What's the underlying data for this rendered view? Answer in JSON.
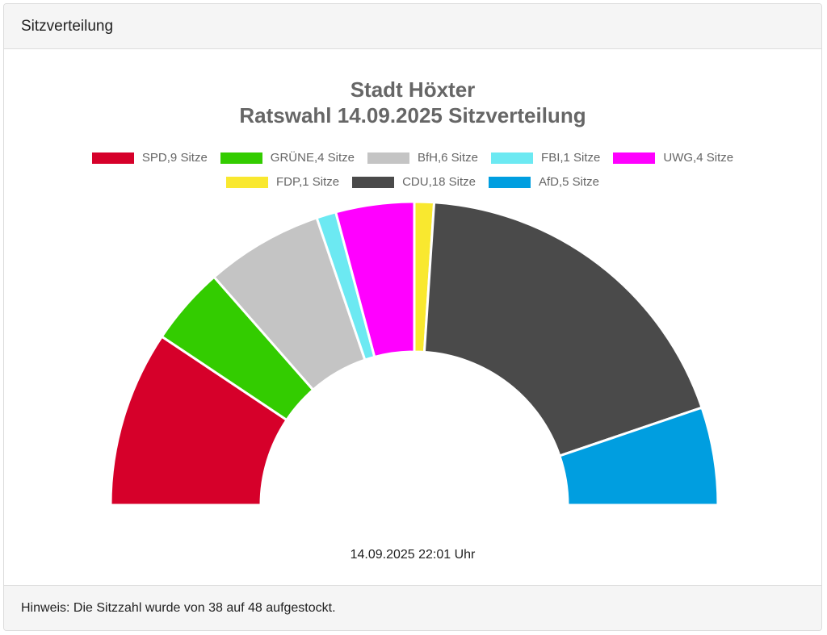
{
  "header": {
    "title": "Sitzverteilung"
  },
  "footer": {
    "note": "Hinweis: Die Sitzzahl wurde von 38 auf 48 aufgestockt."
  },
  "timestamp": "14.09.2025 22:01 Uhr",
  "chart_data": {
    "type": "pie",
    "subtype": "semicircle-doughnut",
    "title": "Stadt Höxter",
    "subtitle": "Ratswahl 14.09.2025 Sitzverteilung",
    "total_seats": 48,
    "legend_position": "top",
    "categories": [
      "SPD",
      "GRÜNE",
      "BfH",
      "FBI",
      "UWG",
      "FDP",
      "CDU",
      "AfD"
    ],
    "values": [
      9,
      4,
      6,
      1,
      4,
      1,
      18,
      5
    ],
    "colors": [
      "#d6002a",
      "#33cc00",
      "#c4c4c4",
      "#6ce9f2",
      "#ff00ff",
      "#f9e82f",
      "#4a4a4a",
      "#009ee0"
    ],
    "legend_labels": [
      "SPD,9 Sitze",
      "GRÜNE,4 Sitze",
      "BfH,6 Sitze",
      "FBI,1 Sitze",
      "UWG,4 Sitze",
      "FDP,1 Sitze",
      "CDU,18 Sitze",
      "AfD,5 Sitze"
    ],
    "legend_rows": [
      [
        0,
        1,
        2,
        3,
        4
      ],
      [
        5,
        6,
        7
      ]
    ]
  }
}
